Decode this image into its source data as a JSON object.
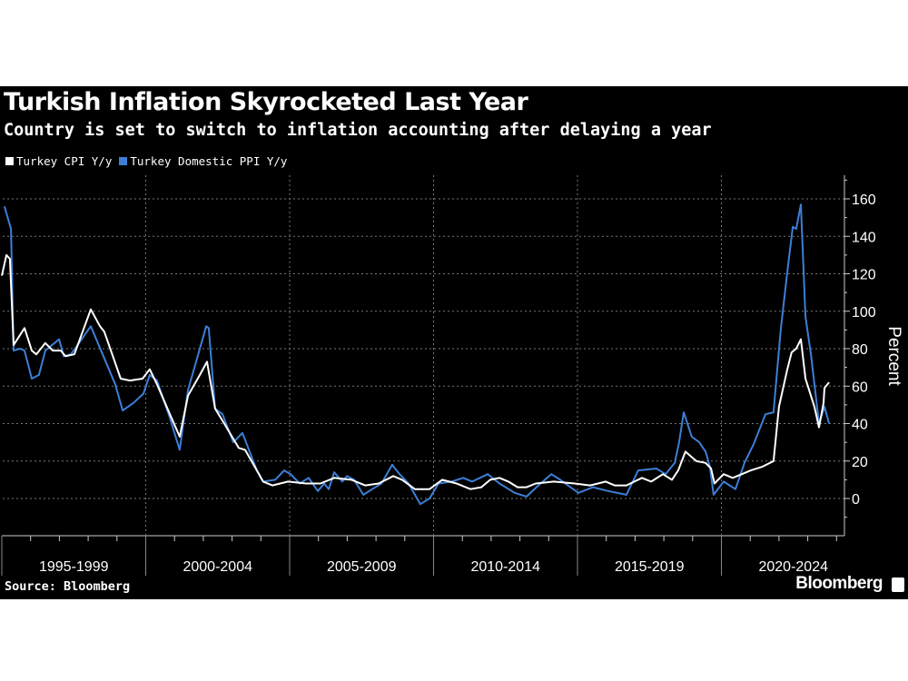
{
  "chart_data": {
    "type": "line",
    "title": "Turkish Inflation Skyrocketed Last Year",
    "subtitle": "Country is set to switch to inflation accounting after delaying a year",
    "ylabel": "Percent",
    "ylim": [
      -20,
      170
    ],
    "yticks": [
      0,
      20,
      40,
      60,
      80,
      100,
      120,
      140,
      160
    ],
    "xlim": [
      1995,
      2024.4
    ],
    "x_period_labels": [
      "1995-1999",
      "2000-2004",
      "2005-2009",
      "2010-2014",
      "2015-2019",
      "2020-2024"
    ],
    "grid": true,
    "legend_position": "top-left",
    "source": "Source: Bloomberg",
    "brand": "Bloomberg",
    "series": [
      {
        "name": "Turkey CPI Y/y",
        "color": "#ffffff",
        "x": [
          1995.0,
          1995.16,
          1995.28,
          1995.41,
          1995.79,
          1996.04,
          1996.2,
          1996.51,
          1996.77,
          1997.05,
          1997.21,
          1997.52,
          1998.09,
          1998.41,
          1998.56,
          1999.13,
          1999.45,
          1999.89,
          2000.14,
          2000.39,
          2000.84,
          2001.18,
          2001.47,
          2001.88,
          2002.13,
          2002.41,
          2002.73,
          2003.23,
          2003.45,
          2003.86,
          2004.08,
          2004.4,
          2004.94,
          2005.57,
          2006.07,
          2006.55,
          2007.15,
          2007.62,
          2008.09,
          2008.6,
          2008.91,
          2009.35,
          2009.86,
          2010.3,
          2010.8,
          2011.28,
          2011.66,
          2011.97,
          2012.29,
          2012.6,
          2012.92,
          2013.23,
          2013.55,
          2014.18,
          2014.9,
          2015.44,
          2015.98,
          2016.29,
          2016.7,
          2017.24,
          2017.56,
          2017.97,
          2018.28,
          2018.5,
          2018.75,
          2019.13,
          2019.45,
          2019.64,
          2019.76,
          2020.08,
          2020.39,
          2020.71,
          2021.02,
          2021.43,
          2021.81,
          2022.0,
          2022.29,
          2022.44,
          2022.6,
          2022.76,
          2022.92,
          2023.23,
          2023.39,
          2023.55,
          2023.58,
          2023.74
        ],
        "y": [
          119,
          130,
          128,
          82,
          91,
          79,
          77,
          83,
          79,
          79,
          76,
          77,
          101,
          92,
          89,
          64,
          63,
          64,
          69,
          61,
          45,
          33,
          55,
          66,
          73,
          48,
          40,
          27,
          26,
          15,
          9,
          7,
          9,
          8,
          8,
          11,
          10,
          7,
          8,
          12,
          10,
          5,
          5,
          10,
          8,
          5,
          6,
          10,
          11,
          9,
          6,
          6,
          8,
          9,
          8,
          7,
          9,
          7,
          7,
          11,
          9,
          13,
          10,
          15,
          25,
          20,
          19,
          16,
          8,
          13,
          11,
          13,
          15,
          17,
          20,
          49,
          69,
          78,
          80,
          85,
          64,
          49,
          38,
          51,
          59,
          62
        ]
      },
      {
        "name": "Turkey Domestic PPI Y/y",
        "color": "#3d7fd6",
        "x": [
          1995.09,
          1995.32,
          1995.41,
          1995.63,
          1995.79,
          1996.04,
          1996.29,
          1996.51,
          1996.99,
          1997.15,
          1997.4,
          1997.68,
          1998.09,
          1998.5,
          1998.94,
          1999.2,
          1999.57,
          1999.92,
          2000.14,
          2000.39,
          2000.84,
          2001.18,
          2001.47,
          2001.88,
          2002.1,
          2002.19,
          2002.41,
          2002.67,
          2003.04,
          2003.36,
          2003.86,
          2004.08,
          2004.5,
          2004.81,
          2005.03,
          2005.35,
          2005.66,
          2005.98,
          2006.2,
          2006.36,
          2006.55,
          2006.83,
          2006.99,
          2007.24,
          2007.56,
          2007.87,
          2008.19,
          2008.56,
          2008.82,
          2009.13,
          2009.54,
          2009.86,
          2010.17,
          2010.62,
          2011.03,
          2011.34,
          2011.88,
          2012.29,
          2012.82,
          2013.23,
          2013.64,
          2014.09,
          2014.4,
          2015.03,
          2015.54,
          2016.07,
          2016.7,
          2017.11,
          2017.74,
          2018.06,
          2018.38,
          2018.53,
          2018.69,
          2018.97,
          2019.23,
          2019.45,
          2019.6,
          2019.73,
          2020.08,
          2020.49,
          2020.8,
          2021.12,
          2021.53,
          2021.81,
          2022.06,
          2022.29,
          2022.48,
          2022.6,
          2022.76,
          2022.92,
          2023.11,
          2023.39,
          2023.58,
          2023.74
        ],
        "y": [
          156,
          144,
          79,
          80,
          79,
          64,
          66,
          79,
          85,
          76,
          77,
          83,
          92,
          77,
          61,
          47,
          51,
          56,
          66,
          63,
          43,
          26,
          58,
          80,
          92,
          91,
          48,
          45,
          30,
          35,
          15,
          9,
          10,
          15,
          13,
          8,
          11,
          4,
          8,
          5,
          14,
          9,
          12,
          10,
          2,
          5,
          8,
          18,
          13,
          8,
          -3,
          0,
          8,
          9,
          11,
          9,
          13,
          8,
          3,
          1,
          7,
          13,
          10,
          3,
          6,
          4,
          2,
          15,
          16,
          13,
          19,
          30,
          46,
          33,
          30,
          25,
          17,
          2,
          9,
          5,
          19,
          29,
          45,
          46,
          90,
          121,
          145,
          144,
          157,
          97,
          77,
          40,
          49,
          40
        ]
      }
    ]
  }
}
